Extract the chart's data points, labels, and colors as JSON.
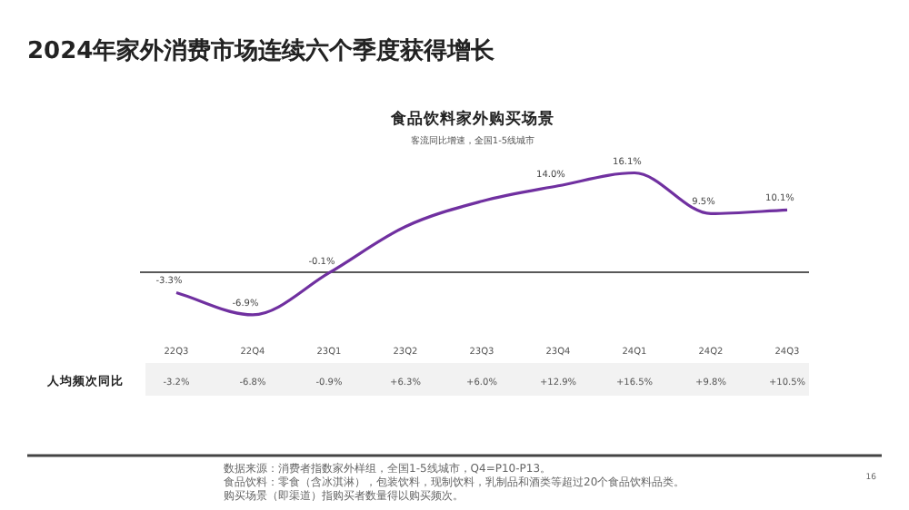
{
  "chart_data": [
    {
      "type": "line",
      "title": "食品饮料家外购买场景",
      "subtitle": "客流同比增速，全国1-5线城市",
      "categories": [
        "22Q3",
        "22Q4",
        "23Q1",
        "23Q2",
        "23Q3",
        "23Q4",
        "24Q1",
        "24Q2",
        "24Q3"
      ],
      "series": [
        {
          "color": "#7030a0",
          "values": [
            -3.3,
            -6.9,
            -0.1,
            7.4,
            11.5,
            14.0,
            16.1,
            9.5,
            10.1
          ],
          "value_labels": [
            "-3.3%",
            "-6.9%",
            "-0.1%",
            null,
            null,
            "14.0%",
            "16.1%",
            "9.5%",
            "10.1%"
          ]
        }
      ],
      "ref_lines": [
        {
          "axis": "y",
          "value": 0,
          "color": "#222222"
        }
      ],
      "marker": "none",
      "annotations": [
        "2024年家外消费市场连续六个季度获得增长",
        "数据来源：消费者指数家外样组，全国1-5线城市，Q4=P10-P13。",
        "食品饮料：零食（含冰淇淋），包装饮料，现制饮料，乳制品和酒类等超过20个食品饮料品类。",
        "购买场景（即渠道）指购买者数量得以购买频次。",
        "16"
      ]
    },
    {
      "type": "other",
      "ylabel": "人均频次同比",
      "value_labels": [
        "-3.2%",
        "-6.8%",
        "-0.9%",
        "+6.3%",
        "+6.0%",
        "+12.9%",
        "+16.5%",
        "+9.8%",
        "+10.5%"
      ]
    }
  ]
}
